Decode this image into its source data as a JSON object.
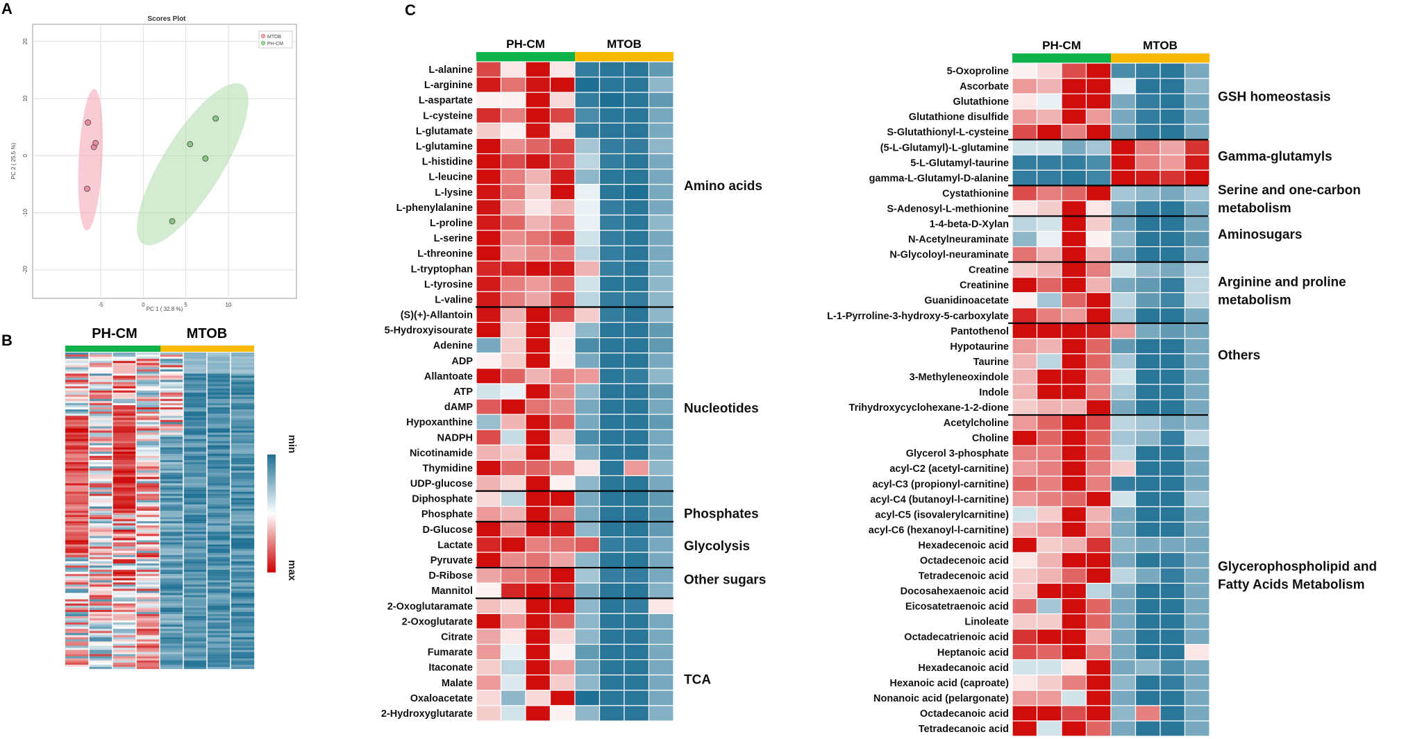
{
  "panels": {
    "a": "A",
    "b": "B",
    "c": "C"
  },
  "colors": {
    "red": "#cc0000",
    "blue": "#1e6f93",
    "white": "#ffffff",
    "green": "#0fb14a",
    "yellow": "#f8b900",
    "pink_ellipse": "#f4a2b3",
    "green_ellipse": "#b5ddb0"
  },
  "chart_data": [
    {
      "type": "scatter",
      "title": "Scores Plot",
      "xlabel": "PC 1 ( 32.8 %)",
      "ylabel": "PC 2 ( 25.5 %)",
      "xlim": [
        -13,
        18
      ],
      "ylim": [
        -25,
        23
      ],
      "xticks": [
        "-5",
        "0",
        "5",
        "10"
      ],
      "yticks": [
        "20",
        "10",
        "0",
        "-10",
        "-20"
      ],
      "legend": [
        "MTOB",
        "PH-CM"
      ],
      "series": [
        {
          "name": "MTOB",
          "color": "#e8798d",
          "x": [
            -6.5,
            -5.8,
            -5.6,
            -6.6
          ],
          "y": [
            5.8,
            1.5,
            2.2,
            -5.8
          ]
        },
        {
          "name": "PH-CM",
          "color": "#6dbb6a",
          "x": [
            8.5,
            5.5,
            7.3,
            3.4
          ],
          "y": [
            6.5,
            2.0,
            -0.5,
            -11.5
          ]
        }
      ]
    },
    {
      "type": "heatmap",
      "groups": [
        "PH-CM",
        "MTOB"
      ],
      "scale": {
        "top": "min",
        "bottom": "max"
      },
      "columns": 8,
      "rows": 150
    },
    {
      "type": "heatmap",
      "groups": [
        "PH-CM",
        "MTOB"
      ],
      "rows": [
        "L-alanine",
        "L-arginine",
        "L-aspartate",
        "L-cysteine",
        "L-glutamate",
        "L-glutamine",
        "L-histidine",
        "L-leucine",
        "L-lysine",
        "L-phenylalanine",
        "L-proline",
        "L-serine",
        "L-threonine",
        "L-tryptophan",
        "L-tyrosine",
        "L-valine",
        "(S)(+)-Allantoin",
        "5-Hydroxyisourate",
        "Adenine",
        "ADP",
        "Allantoate",
        "ATP",
        "dAMP",
        "Hypoxanthine",
        "NADPH",
        "Nicotinamide",
        "Thymidine",
        "UDP-glucose",
        "Diphosphate",
        "Phosphate",
        "D-Glucose",
        "Lactate",
        "Pyruvate",
        "D-Ribose",
        "Mannitol",
        "2-Oxoglutaramate",
        "2-Oxoglutarate",
        "Citrate",
        "Fumarate",
        "Itaconate",
        "Malate",
        "Oxaloacetate",
        "2-Hydroxyglutarate"
      ],
      "dividers_after": [
        15,
        27,
        29,
        32,
        34
      ],
      "categories": [
        {
          "label": [
            "Amino acids"
          ],
          "row": 7.6
        },
        {
          "label": [
            "Nucleotides"
          ],
          "row": 22.1
        },
        {
          "label": [
            "Phosphates"
          ],
          "row": 29
        },
        {
          "label": [
            "Glycolysis"
          ],
          "row": 31.1
        },
        {
          "label": [
            "Other sugars"
          ],
          "row": 33.3
        },
        {
          "label": [
            "TCA"
          ],
          "row": 39.8
        }
      ],
      "values": [
        [
          0.72,
          0.1,
          0.95,
          0.1,
          -0.9,
          -0.95,
          -0.95,
          -0.7
        ],
        [
          0.9,
          0.55,
          0.92,
          0.95,
          -1,
          -0.95,
          -0.95,
          -0.5
        ],
        [
          0.05,
          0.05,
          0.95,
          0.15,
          -0.9,
          -1,
          -0.95,
          -0.7
        ],
        [
          0.82,
          0.5,
          0.95,
          0.72,
          -0.8,
          -0.95,
          -0.95,
          -0.6
        ],
        [
          0.2,
          0.05,
          0.92,
          0.1,
          -0.9,
          -0.95,
          -0.95,
          -0.6
        ],
        [
          0.95,
          0.45,
          0.6,
          0.75,
          -0.4,
          -0.9,
          -0.9,
          -0.5
        ],
        [
          0.95,
          0.7,
          0.92,
          0.7,
          -0.3,
          -0.9,
          -0.95,
          -0.6
        ],
        [
          0.95,
          0.5,
          0.3,
          0.9,
          -0.5,
          -0.95,
          -0.95,
          -0.6
        ],
        [
          0.92,
          0.55,
          0.2,
          0.95,
          -0.1,
          -0.95,
          -1,
          -0.6
        ],
        [
          0.92,
          0.35,
          0.1,
          0.3,
          -0.1,
          -0.9,
          -0.95,
          -0.6
        ],
        [
          0.9,
          0.6,
          0.3,
          0.5,
          -0.1,
          -0.9,
          -0.95,
          -0.5
        ],
        [
          0.95,
          0.45,
          0.55,
          0.75,
          -0.2,
          -0.9,
          -0.95,
          -0.6
        ],
        [
          0.95,
          0.35,
          0.45,
          0.5,
          -0.3,
          -0.9,
          -0.95,
          -0.6
        ],
        [
          0.85,
          0.85,
          0.95,
          0.9,
          0.3,
          -0.9,
          -0.95,
          -0.55
        ],
        [
          0.9,
          0.5,
          0.4,
          0.6,
          -0.2,
          -0.95,
          -0.95,
          -0.5
        ],
        [
          0.9,
          0.5,
          0.35,
          0.75,
          -0.3,
          -0.9,
          -0.9,
          -0.5
        ],
        [
          0.92,
          0.3,
          0.95,
          0.7,
          0.2,
          -0.9,
          -0.95,
          -0.5
        ],
        [
          0.95,
          0.2,
          0.95,
          0.1,
          -0.5,
          -0.95,
          -0.95,
          -0.7
        ],
        [
          -0.6,
          0.2,
          0.95,
          0.05,
          -0.8,
          -0.95,
          -0.95,
          -0.7
        ],
        [
          0.05,
          0.2,
          0.95,
          0.05,
          -0.6,
          -0.95,
          -0.95,
          -0.6
        ],
        [
          0.95,
          0.6,
          0.3,
          0.5,
          0.4,
          -0.95,
          -0.9,
          -0.5
        ],
        [
          -0.2,
          -0.1,
          0.95,
          0.45,
          -0.5,
          -0.95,
          -0.95,
          -0.7
        ],
        [
          0.65,
          0.95,
          0.55,
          0.45,
          -0.6,
          -0.95,
          -0.95,
          -0.6
        ],
        [
          -0.45,
          0.3,
          0.95,
          0.6,
          -0.6,
          -0.95,
          -0.95,
          -0.7
        ],
        [
          0.7,
          -0.25,
          0.95,
          0.2,
          -0.8,
          -0.95,
          -0.95,
          -0.6
        ],
        [
          0.3,
          0.2,
          0.95,
          0.1,
          -0.6,
          -0.95,
          -0.95,
          -0.6
        ],
        [
          0.95,
          0.6,
          0.6,
          0.5,
          0.1,
          -0.95,
          0.4,
          -0.5
        ],
        [
          0.3,
          0.15,
          0.95,
          0.05,
          -0.5,
          -0.95,
          -0.95,
          -0.6
        ],
        [
          0.15,
          -0.3,
          0.95,
          0.95,
          -0.6,
          -0.95,
          -0.95,
          -0.7
        ],
        [
          0.4,
          0.3,
          0.95,
          0.55,
          -0.6,
          -0.95,
          -0.95,
          -0.7
        ],
        [
          0.95,
          0.45,
          0.95,
          0.9,
          -0.5,
          -0.95,
          -0.95,
          -0.7
        ],
        [
          0.85,
          0.95,
          0.5,
          0.55,
          0.65,
          -0.9,
          -0.9,
          -0.6
        ],
        [
          0.95,
          0.45,
          0.55,
          0.35,
          -0.5,
          -0.95,
          -0.95,
          -0.6
        ],
        [
          0.35,
          0.5,
          0.6,
          0.95,
          -0.4,
          -0.9,
          -0.9,
          -0.6
        ],
        [
          0.05,
          0.85,
          0.95,
          0.85,
          -0.6,
          -0.95,
          -0.95,
          -0.55
        ],
        [
          0.25,
          0.15,
          0.95,
          0.95,
          -0.5,
          -0.95,
          -0.9,
          0.1
        ],
        [
          0.95,
          0.4,
          0.95,
          0.6,
          -0.5,
          -0.95,
          -0.95,
          -0.6
        ],
        [
          0.35,
          0.1,
          0.95,
          0.15,
          -0.5,
          -0.95,
          -0.95,
          -0.6
        ],
        [
          0.4,
          -0.1,
          0.95,
          0.05,
          -0.7,
          -0.95,
          -0.95,
          -0.6
        ],
        [
          0.2,
          -0.3,
          0.95,
          0.4,
          -0.6,
          -0.95,
          -0.95,
          -0.6
        ],
        [
          0.4,
          -0.15,
          0.95,
          0.2,
          -0.5,
          -0.95,
          -0.95,
          -0.6
        ],
        [
          0.15,
          -0.5,
          0.15,
          0.95,
          -1,
          -0.95,
          -0.95,
          -0.6
        ],
        [
          0.2,
          -0.2,
          0.95,
          0.05,
          -0.5,
          -0.95,
          -0.95,
          -0.55
        ]
      ]
    },
    {
      "type": "heatmap",
      "groups": [
        "PH-CM",
        "MTOB"
      ],
      "rows": [
        "5-Oxoproline",
        "Ascorbate",
        "Glutathione",
        "Glutathione disulfide",
        "S-Glutathionyl-L-cysteine",
        "(5-L-Glutamyl)-L-glutamine",
        "5-L-Glutamyl-taurine",
        "gamma-L-Glutamyl-D-alanine",
        "Cystathionine",
        "S-Adenosyl-L-methionine",
        "1-4-beta-D-Xylan",
        "N-Acetylneuraminate",
        "N-Glycoloyl-neuraminate",
        "Creatine",
        "Creatinine",
        "Guanidinoacetate",
        "L-1-Pyrroline-3-hydroxy-5-carboxylate",
        "Pantothenol",
        "Hypotaurine",
        "Taurine",
        "3-Methyleneoxindole",
        "Indole",
        "Trihydroxycyclohexane-1-2-dione",
        "Acetylcholine",
        "Choline",
        "Glycerol 3-phosphate",
        "acyl-C2 (acetyl-carnitine)",
        "acyl-C3 (propionyl-carnitine)",
        "acyl-C4 (butanoyl-l-carnitine)",
        "acyl-C5 (isovalerylcarnitine)",
        "acyl-C6 (hexanoyl-l-carnitine)",
        "Hexadecenoic acid",
        "Octadecenoic acid",
        "Tetradecenoic acid",
        "Docosahexaenoic acid",
        "Eicosatetraenoic acid",
        "Linoleate",
        "Octadecatrienoic acid",
        "Heptanoic acid",
        "Hexadecanoic acid",
        "Hexanoic acid (caproate)",
        "Nonanoic acid (pelargonate)",
        "Octadecanoic acid",
        "Tetradecanoic acid"
      ],
      "dividers_after": [
        4,
        7,
        9,
        12,
        16,
        22
      ],
      "categories": [
        {
          "label": [
            "GSH homeostasis"
          ],
          "row": 1.7
        },
        {
          "label": [
            "Gamma-glutamyls"
          ],
          "row": 5.6
        },
        {
          "label": [
            "Serine and one-carbon",
            "metabolism"
          ],
          "row": 7.8
        },
        {
          "label": [
            "Aminosugars"
          ],
          "row": 10.7
        },
        {
          "label": [
            "Arginine and proline",
            "metabolism"
          ],
          "row": 13.8
        },
        {
          "label": [
            "Others"
          ],
          "row": 18.6
        },
        {
          "label": [
            "Glycerophospholipid and",
            "Fatty Acids Metabolism"
          ],
          "row": 32.4
        }
      ],
      "values": [
        [
          0.05,
          0.15,
          0.7,
          0.95,
          -0.8,
          -0.9,
          -0.95,
          -0.6
        ],
        [
          0.4,
          0.3,
          0.95,
          0.95,
          -0.1,
          -0.95,
          -0.95,
          -0.5
        ],
        [
          0.1,
          -0.1,
          0.95,
          0.95,
          -0.6,
          -0.9,
          -0.95,
          -0.6
        ],
        [
          0.4,
          0.3,
          0.95,
          0.4,
          -0.6,
          -0.9,
          -0.95,
          -0.6
        ],
        [
          0.7,
          0.95,
          0.5,
          0.95,
          -0.6,
          -0.9,
          -0.95,
          -0.6
        ],
        [
          -0.2,
          -0.2,
          -0.6,
          -0.4,
          0.95,
          0.5,
          0.35,
          0.8
        ],
        [
          -0.9,
          -0.9,
          -0.9,
          -0.8,
          0.95,
          0.5,
          0.4,
          0.9
        ],
        [
          -0.9,
          -0.9,
          -0.95,
          -0.85,
          0.95,
          0.9,
          0.8,
          0.95
        ],
        [
          0.7,
          0.5,
          0.6,
          0.95,
          -0.4,
          -0.5,
          -0.6,
          -0.4
        ],
        [
          0.1,
          0.2,
          0.95,
          0.1,
          -0.6,
          -0.9,
          -0.95,
          -0.6
        ],
        [
          -0.3,
          -0.2,
          0.95,
          0.2,
          -0.6,
          -0.95,
          -0.95,
          -0.6
        ],
        [
          -0.5,
          -0.1,
          0.95,
          0.05,
          -0.5,
          -0.95,
          -0.95,
          -0.7
        ],
        [
          0.55,
          0.3,
          0.95,
          0.3,
          -0.6,
          -0.95,
          -0.95,
          -0.6
        ],
        [
          0.2,
          0.3,
          0.95,
          0.5,
          -0.2,
          -0.5,
          -0.6,
          -0.3
        ],
        [
          0.95,
          0.6,
          0.95,
          0.3,
          -0.6,
          -0.7,
          -0.9,
          -0.3
        ],
        [
          0.05,
          -0.4,
          0.6,
          0.95,
          -0.3,
          -0.7,
          -0.85,
          -0.3
        ],
        [
          0.85,
          0.5,
          0.4,
          0.95,
          -0.4,
          -0.95,
          -0.95,
          -0.6
        ],
        [
          0.95,
          0.95,
          0.95,
          0.9,
          0.4,
          -0.6,
          -0.7,
          -0.6
        ],
        [
          0.4,
          0.3,
          0.95,
          0.6,
          -0.7,
          -0.95,
          -0.95,
          -0.6
        ],
        [
          0.3,
          -0.3,
          0.95,
          0.6,
          -0.4,
          -0.95,
          -0.95,
          -0.6
        ],
        [
          0.3,
          0.95,
          0.95,
          0.5,
          -0.2,
          -0.95,
          -0.95,
          -0.6
        ],
        [
          0.3,
          0.95,
          0.95,
          0.5,
          -0.4,
          -0.95,
          -0.95,
          -0.6
        ],
        [
          0.2,
          0.3,
          0.3,
          0.95,
          -0.6,
          -0.95,
          -0.95,
          -0.6
        ],
        [
          0.4,
          0.6,
          0.95,
          0.7,
          -0.3,
          -0.4,
          -0.6,
          -0.5
        ],
        [
          0.95,
          0.6,
          0.95,
          0.6,
          -0.4,
          -0.5,
          -0.9,
          -0.3
        ],
        [
          0.5,
          0.5,
          0.95,
          0.6,
          -0.3,
          -0.95,
          -0.95,
          -0.6
        ],
        [
          0.4,
          0.5,
          0.95,
          0.5,
          0.2,
          -0.95,
          -0.95,
          -0.6
        ],
        [
          0.6,
          0.5,
          0.95,
          0.5,
          -0.9,
          -0.95,
          -0.95,
          -0.6
        ],
        [
          0.4,
          0.5,
          0.6,
          0.95,
          -0.2,
          -0.95,
          -0.95,
          -0.4
        ],
        [
          -0.2,
          0.2,
          0.95,
          0.3,
          -0.6,
          -0.95,
          -0.95,
          -0.6
        ],
        [
          0.3,
          0.4,
          0.95,
          0.4,
          -0.6,
          -0.95,
          -0.95,
          -0.6
        ],
        [
          0.95,
          0.2,
          0.3,
          0.8,
          -0.5,
          -0.6,
          -0.6,
          -0.6
        ],
        [
          0.1,
          0.3,
          0.95,
          0.95,
          -0.6,
          -0.95,
          -0.9,
          -0.6
        ],
        [
          0.2,
          0.3,
          0.6,
          0.95,
          -0.3,
          -0.6,
          -0.9,
          -0.6
        ],
        [
          0.2,
          0.95,
          0.95,
          -0.3,
          -0.6,
          -0.95,
          -0.95,
          -0.6
        ],
        [
          0.6,
          -0.4,
          0.95,
          0.6,
          -0.6,
          -0.95,
          -0.95,
          -0.6
        ],
        [
          0.2,
          0.2,
          0.95,
          0.6,
          -0.6,
          -0.95,
          -0.95,
          -0.6
        ],
        [
          0.8,
          0.95,
          0.95,
          0.3,
          -0.6,
          -0.95,
          -0.95,
          -0.6
        ],
        [
          0.7,
          0.6,
          0.95,
          0.5,
          -0.6,
          -0.95,
          -0.95,
          0.1
        ],
        [
          -0.2,
          -0.2,
          0.1,
          0.95,
          -0.6,
          -0.5,
          -0.8,
          -0.6
        ],
        [
          0.1,
          0.2,
          0.5,
          0.95,
          -0.5,
          -0.95,
          -0.9,
          -0.6
        ],
        [
          0.4,
          0.4,
          -0.2,
          0.95,
          -0.6,
          -0.95,
          -0.95,
          -0.6
        ],
        [
          0.95,
          0.95,
          0.7,
          0.95,
          -0.5,
          0.5,
          -0.95,
          -0.6
        ],
        [
          0.95,
          -0.2,
          0.95,
          0.6,
          -0.6,
          -0.95,
          -0.95,
          -0.6
        ]
      ]
    }
  ]
}
